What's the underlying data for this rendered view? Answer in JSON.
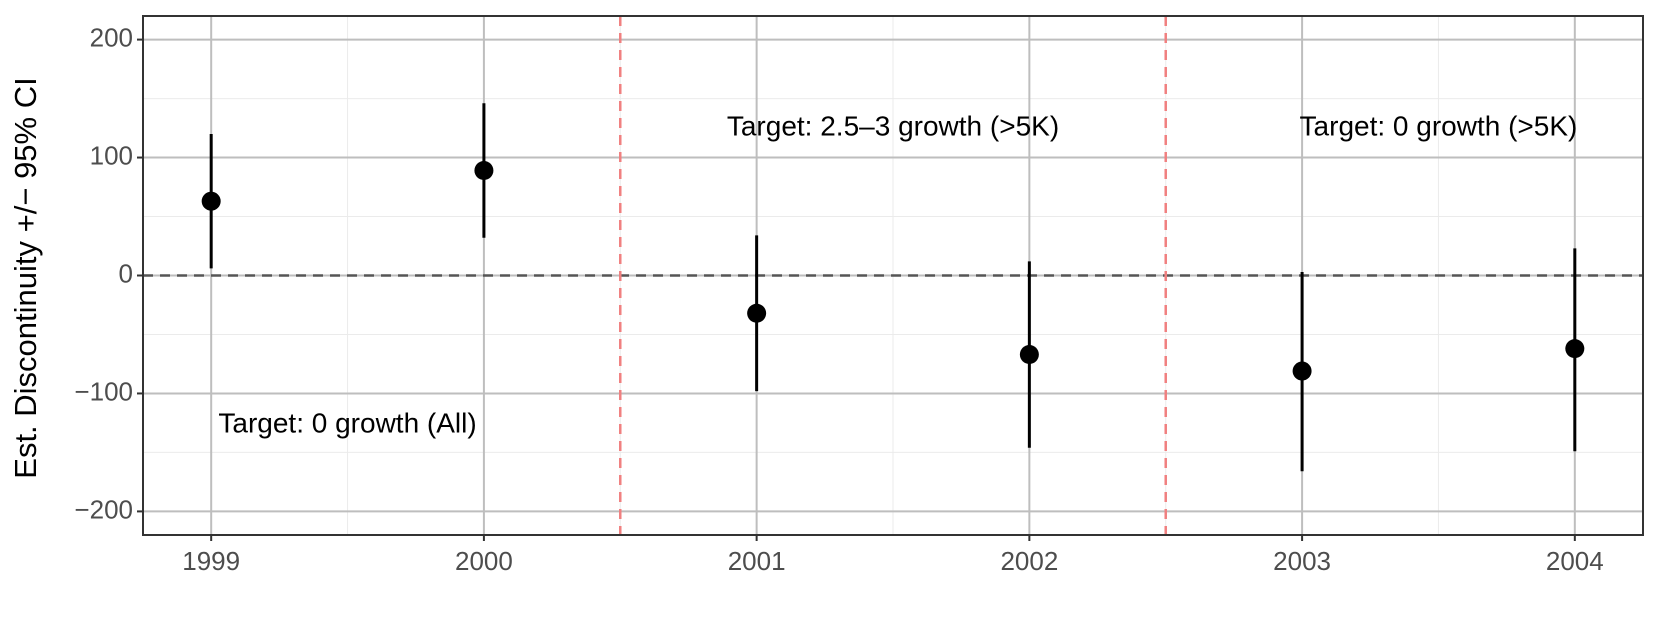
{
  "chart_data": {
    "type": "pointrange",
    "y_label": "Est. Discontinuity +/− 95% CI",
    "x": [
      1999,
      2000,
      2001,
      2002,
      2003,
      2004
    ],
    "series": [
      {
        "color": "#000000",
        "values": [
          63,
          89,
          -32,
          -67,
          -81,
          -62
        ],
        "lower": [
          6,
          32,
          -98,
          -146,
          -166,
          -149
        ],
        "upper": [
          120,
          146,
          34,
          12,
          3,
          23
        ]
      }
    ],
    "xlim": [
      1998.75,
      2004.25
    ],
    "ylim": [
      -220,
      220
    ],
    "xticks": [
      1999,
      2000,
      2001,
      2002,
      2003,
      2004
    ],
    "yticks": [
      {
        "value": -200,
        "label": "−200"
      },
      {
        "value": -100,
        "label": "−100"
      },
      0,
      100,
      200
    ],
    "xminor": [
      1999.5,
      2000.5,
      2001.5,
      2002.5,
      2003.5
    ],
    "yminor": [
      -150,
      -50,
      50,
      150
    ],
    "grid": true,
    "hlines": [
      {
        "value": 0,
        "color": "#555555"
      }
    ],
    "vlines": [
      {
        "value": 2000.5,
        "color": "#f08080"
      },
      {
        "value": 2002.5,
        "color": "#f08080"
      }
    ],
    "annotations": [
      {
        "text": "Target: 0 growth (All)",
        "x": 1999.5,
        "y": -127
      },
      {
        "text": "Target: 2.5–3 growth (>5K)",
        "x": 2001.5,
        "y": 125
      },
      {
        "text": "Target: 0 growth (>5K)",
        "x": 2003.5,
        "y": 125
      }
    ]
  }
}
